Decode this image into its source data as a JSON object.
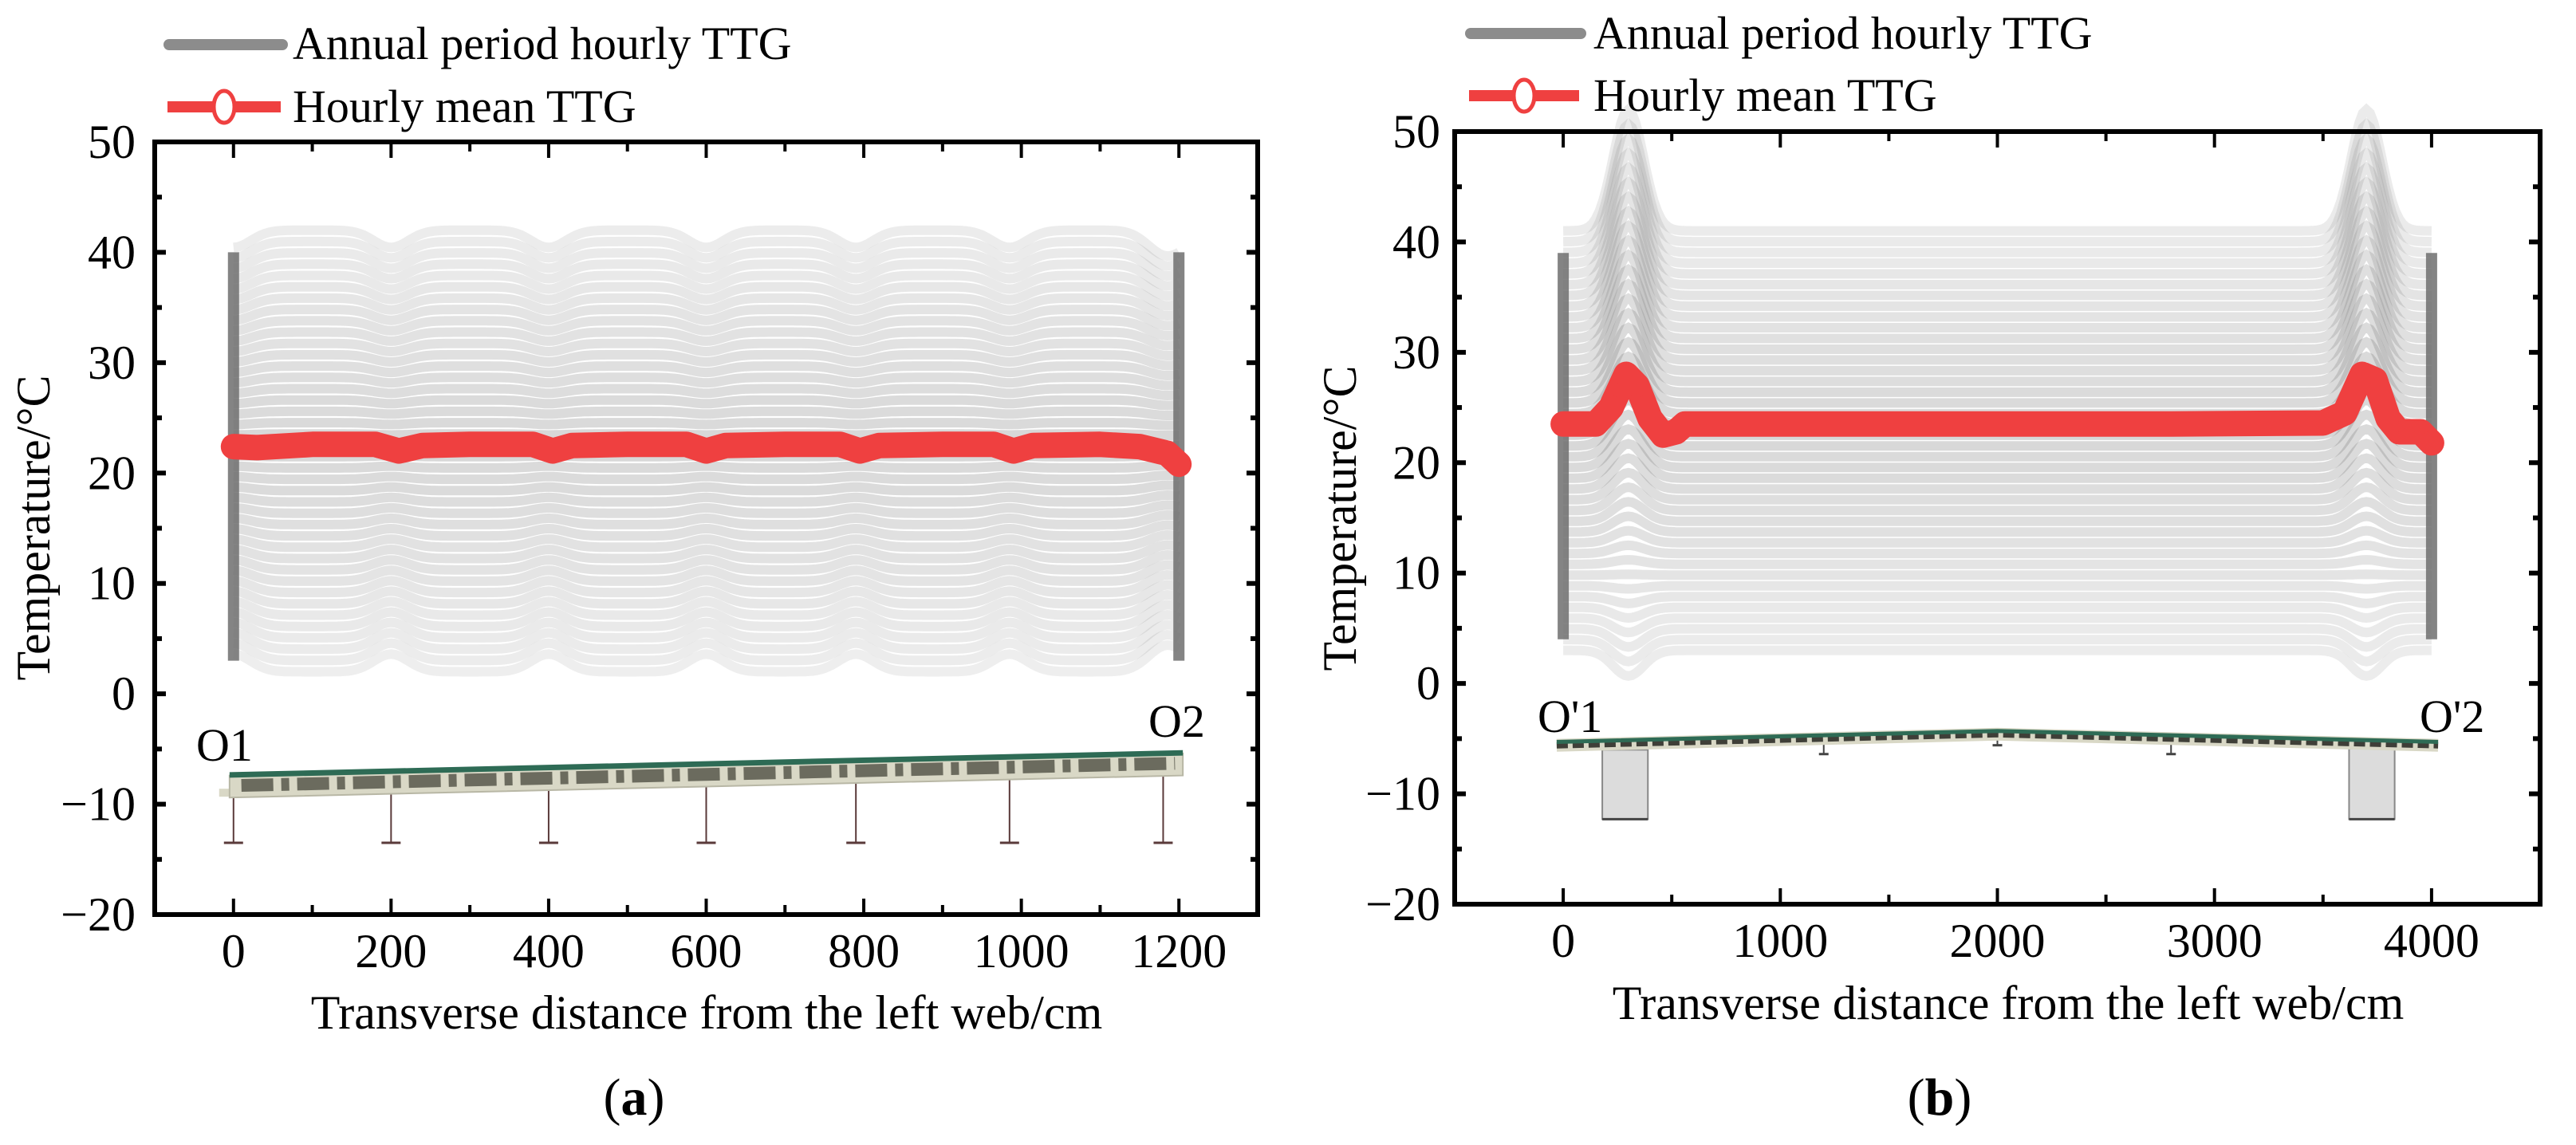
{
  "chart_data": [
    {
      "panel_label": "(a)",
      "panel_letter": "a",
      "type": "line",
      "title": "",
      "xlabel": "Transverse distance from the left web/cm",
      "ylabel": "Temperature/°C",
      "xlim": [
        -100,
        1300
      ],
      "ylim": [
        -20,
        50
      ],
      "xticks": [
        0,
        200,
        400,
        600,
        800,
        1000,
        1200
      ],
      "yticks": [
        -20,
        -10,
        0,
        10,
        20,
        30,
        40,
        50
      ],
      "legend": [
        {
          "label": "Annual period hourly TTG",
          "color": "#8c8c8c",
          "style": "line"
        },
        {
          "label": "Hourly mean TTG",
          "color": "#ef4040",
          "style": "line-circle"
        }
      ],
      "legend_placement": "top-left, outside",
      "band": {
        "name": "Annual period hourly TTG",
        "range": [
          2,
          42
        ],
        "profiles": 40,
        "color": "#7a7a7a"
      },
      "series": [
        {
          "name": "Hourly mean TTG",
          "color": "#ef4040",
          "points": [
            [
              0,
              22.4
            ],
            [
              30,
              22.3
            ],
            [
              100,
              22.6
            ],
            [
              180,
              22.6
            ],
            [
              210,
              22.0
            ],
            [
              240,
              22.5
            ],
            [
              300,
              22.6
            ],
            [
              380,
              22.6
            ],
            [
              405,
              22.0
            ],
            [
              430,
              22.5
            ],
            [
              500,
              22.6
            ],
            [
              575,
              22.6
            ],
            [
              600,
              22.0
            ],
            [
              625,
              22.5
            ],
            [
              700,
              22.6
            ],
            [
              770,
              22.6
            ],
            [
              795,
              22.0
            ],
            [
              820,
              22.5
            ],
            [
              900,
              22.6
            ],
            [
              965,
              22.6
            ],
            [
              990,
              22.0
            ],
            [
              1015,
              22.5
            ],
            [
              1100,
              22.6
            ],
            [
              1150,
              22.4
            ],
            [
              1185,
              21.8
            ],
            [
              1200,
              20.8
            ]
          ]
        }
      ],
      "cross_section": {
        "type": "multi-girder",
        "girders": [
          0,
          200,
          400,
          600,
          790,
          985,
          1180
        ],
        "deck_left": -7.4,
        "deck_right": -5.4,
        "girder_bottom": -13.5
      },
      "annotations": [
        "O1",
        "O2"
      ]
    },
    {
      "panel_label": "(b)",
      "panel_letter": "b",
      "type": "line",
      "title": "",
      "xlabel": "Transverse distance from the left web/cm",
      "ylabel": "Temperature/°C",
      "xlim": [
        -500,
        4500
      ],
      "ylim": [
        -20,
        50
      ],
      "xticks": [
        0,
        1000,
        2000,
        3000,
        4000
      ],
      "yticks": [
        -20,
        -10,
        0,
        10,
        20,
        30,
        40,
        50
      ],
      "legend": [
        {
          "label": "Annual period hourly TTG",
          "color": "#8c8c8c",
          "style": "line"
        },
        {
          "label": "Hourly mean TTG",
          "color": "#ef4040",
          "style": "line-circle"
        }
      ],
      "legend_placement": "top-left, outside",
      "band": {
        "name": "Annual period hourly TTG",
        "range": [
          3,
          41
        ],
        "profiles": 40,
        "color": "#7a7a7a"
      },
      "series": [
        {
          "name": "Hourly mean TTG",
          "color": "#ef4040",
          "points": [
            [
              0,
              23.5
            ],
            [
              150,
              23.5
            ],
            [
              220,
              25
            ],
            [
              290,
              28
            ],
            [
              340,
              27
            ],
            [
              400,
              24
            ],
            [
              460,
              22.5
            ],
            [
              520,
              22.8
            ],
            [
              560,
              23.5
            ],
            [
              1200,
              23.5
            ],
            [
              2000,
              23.5
            ],
            [
              2800,
              23.5
            ],
            [
              3500,
              23.6
            ],
            [
              3600,
              24.5
            ],
            [
              3680,
              28
            ],
            [
              3740,
              27.5
            ],
            [
              3800,
              24
            ],
            [
              3850,
              22.8
            ],
            [
              3950,
              22.8
            ],
            [
              4000,
              21.8
            ]
          ]
        }
      ],
      "cross_section": {
        "type": "box-arch",
        "piers": [
          [
            180,
            390
          ],
          [
            3620,
            3830
          ]
        ],
        "hangers": [
          1200,
          2000,
          2800
        ],
        "deck_edge": -5.6,
        "deck_crown": -4.6,
        "pier_bottom": -12.3
      },
      "annotations": [
        "O'1",
        "O'2"
      ]
    }
  ]
}
